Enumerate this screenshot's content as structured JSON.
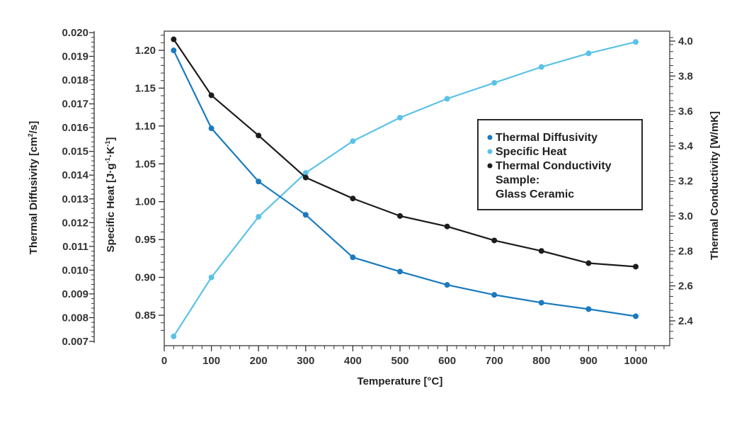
{
  "chart_data": {
    "type": "line",
    "title": "",
    "xlabel": "Temperature [°C]",
    "xlim": [
      0,
      1080
    ],
    "x_ticks": [
      0,
      100,
      200,
      300,
      400,
      500,
      600,
      700,
      800,
      900,
      1000
    ],
    "x": [
      20,
      100,
      200,
      300,
      400,
      500,
      600,
      700,
      800,
      900,
      1000
    ],
    "axes": {
      "diffusivity": {
        "label": "Thermal Diffusivity [cm²/s]",
        "label_main": "Thermal Diffusivity [cm",
        "label_sup": "2",
        "label_tail": "/s]",
        "position": "far-left",
        "ylim": [
          0.0068,
          0.0201
        ],
        "ticks": [
          "0.020",
          "0.019",
          "0.018",
          "0.017",
          "0.016",
          "0.015",
          "0.014",
          "0.013",
          "0.012",
          "0.011",
          "0.010",
          "0.009",
          "0.008",
          "0.007"
        ]
      },
      "specific_heat": {
        "label": "Specific Heat [J·g⁻¹·K⁻¹]",
        "label_main": "Specific Heat [J·g",
        "label_sup1": "-1",
        "label_mid": "·K",
        "label_sup2": "-1",
        "label_tail": "]",
        "position": "left",
        "ylim": [
          0.8238,
          1.2274
        ],
        "ticks": [
          "1.20",
          "1.15",
          "1.10",
          "1.05",
          "1.00",
          "0.95",
          "0.90",
          "0.85"
        ]
      },
      "conductivity": {
        "label": "Thermal Conductivity [W/mK]",
        "position": "right",
        "ylim": [
          2.24,
          4.06
        ],
        "ticks": [
          "4.0",
          "3.8",
          "3.6",
          "3.4",
          "3.2",
          "3.0",
          "2.8",
          "2.6",
          "2.4"
        ]
      }
    },
    "series": [
      {
        "name": "Thermal Diffusivity",
        "axis": "diffusivity",
        "color": "#1a7abf",
        "values": [
          0.01925,
          0.01597,
          0.01373,
          0.01233,
          0.01054,
          0.00994,
          0.00938,
          0.00896,
          0.00863,
          0.00836,
          0.00806
        ]
      },
      {
        "name": "Specific Heat",
        "axis": "specific_heat",
        "color": "#5bc2e7",
        "values": [
          0.822,
          0.9,
          0.98,
          1.038,
          1.08,
          1.111,
          1.136,
          1.157,
          1.178,
          1.196,
          1.211
        ]
      },
      {
        "name": "Thermal Conductivity",
        "axis": "conductivity",
        "color": "#1c1c1c",
        "values": [
          4.01,
          3.69,
          3.46,
          3.22,
          3.1,
          3.0,
          2.94,
          2.86,
          2.8,
          2.73,
          2.71
        ]
      }
    ],
    "legend": {
      "placement": "center-right",
      "entries": [
        "Thermal Diffusivity",
        "Specific Heat",
        "Thermal Conductivity"
      ],
      "note_line1": "Sample:",
      "note_line2": "Glass Ceramic"
    },
    "grid": false
  }
}
